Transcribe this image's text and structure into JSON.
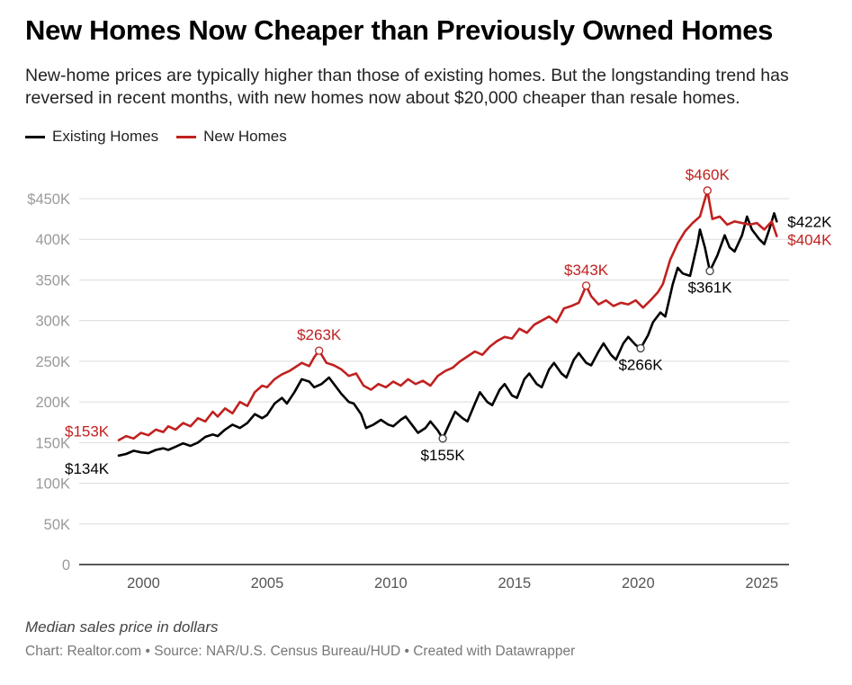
{
  "header": {
    "title": "New Homes Now Cheaper than Previously Owned Homes",
    "subtitle": "New-home prices are typically higher than those of existing homes. But the longstanding trend has reversed in recent months, with new homes now about $20,000 cheaper than resale homes."
  },
  "footer": {
    "note": "Median sales price in dollars",
    "credit": "Chart: Realtor.com • Source: NAR/U.S. Census Bureau/HUD • Created with Datawrapper"
  },
  "chart_data": {
    "type": "line",
    "ylim": [
      0,
      450000
    ],
    "xlim": [
      1997.4,
      2026.1
    ],
    "grid": true,
    "legend_position": "top-left",
    "y_ticks": [
      {
        "value": 0,
        "label": "0"
      },
      {
        "value": 50000,
        "label": "50K"
      },
      {
        "value": 100000,
        "label": "100K"
      },
      {
        "value": 150000,
        "label": "150K"
      },
      {
        "value": 200000,
        "label": "200K"
      },
      {
        "value": 250000,
        "label": "250K"
      },
      {
        "value": 300000,
        "label": "300K"
      },
      {
        "value": 350000,
        "label": "350K"
      },
      {
        "value": 400000,
        "label": "400K"
      },
      {
        "value": 450000,
        "label": "$450K"
      }
    ],
    "x_ticks": [
      {
        "value": 2000,
        "label": "2000"
      },
      {
        "value": 2005,
        "label": "2005"
      },
      {
        "value": 2010,
        "label": "2010"
      },
      {
        "value": 2015,
        "label": "2015"
      },
      {
        "value": 2020,
        "label": "2020"
      },
      {
        "value": 2025,
        "label": "2025"
      }
    ],
    "series": [
      {
        "name": "Existing Homes",
        "color": "#000000",
        "points": [
          [
            1999.0,
            134000
          ],
          [
            1999.3,
            136000
          ],
          [
            1999.6,
            140000
          ],
          [
            1999.9,
            138000
          ],
          [
            2000.2,
            137000
          ],
          [
            2000.5,
            141000
          ],
          [
            2000.8,
            143000
          ],
          [
            2001.0,
            141000
          ],
          [
            2001.3,
            145000
          ],
          [
            2001.6,
            149000
          ],
          [
            2001.9,
            146000
          ],
          [
            2002.2,
            150000
          ],
          [
            2002.5,
            157000
          ],
          [
            2002.8,
            160000
          ],
          [
            2003.0,
            158000
          ],
          [
            2003.3,
            166000
          ],
          [
            2003.6,
            172000
          ],
          [
            2003.9,
            168000
          ],
          [
            2004.2,
            174000
          ],
          [
            2004.5,
            185000
          ],
          [
            2004.8,
            180000
          ],
          [
            2005.0,
            184000
          ],
          [
            2005.3,
            198000
          ],
          [
            2005.6,
            205000
          ],
          [
            2005.8,
            198000
          ],
          [
            2006.1,
            212000
          ],
          [
            2006.4,
            228000
          ],
          [
            2006.7,
            225000
          ],
          [
            2006.9,
            218000
          ],
          [
            2007.2,
            222000
          ],
          [
            2007.5,
            230000
          ],
          [
            2007.8,
            218000
          ],
          [
            2008.0,
            210000
          ],
          [
            2008.3,
            200000
          ],
          [
            2008.5,
            198000
          ],
          [
            2008.8,
            185000
          ],
          [
            2009.0,
            168000
          ],
          [
            2009.3,
            172000
          ],
          [
            2009.6,
            178000
          ],
          [
            2009.9,
            172000
          ],
          [
            2010.1,
            170000
          ],
          [
            2010.4,
            178000
          ],
          [
            2010.6,
            182000
          ],
          [
            2010.9,
            170000
          ],
          [
            2011.1,
            162000
          ],
          [
            2011.4,
            168000
          ],
          [
            2011.6,
            176000
          ],
          [
            2011.9,
            165000
          ],
          [
            2012.1,
            155000
          ],
          [
            2012.4,
            175000
          ],
          [
            2012.6,
            188000
          ],
          [
            2012.9,
            180000
          ],
          [
            2013.1,
            176000
          ],
          [
            2013.4,
            198000
          ],
          [
            2013.6,
            212000
          ],
          [
            2013.9,
            200000
          ],
          [
            2014.1,
            196000
          ],
          [
            2014.4,
            215000
          ],
          [
            2014.6,
            222000
          ],
          [
            2014.9,
            208000
          ],
          [
            2015.1,
            205000
          ],
          [
            2015.4,
            228000
          ],
          [
            2015.6,
            235000
          ],
          [
            2015.9,
            222000
          ],
          [
            2016.1,
            218000
          ],
          [
            2016.4,
            240000
          ],
          [
            2016.6,
            248000
          ],
          [
            2016.9,
            235000
          ],
          [
            2017.1,
            230000
          ],
          [
            2017.4,
            252000
          ],
          [
            2017.6,
            260000
          ],
          [
            2017.9,
            248000
          ],
          [
            2018.1,
            245000
          ],
          [
            2018.4,
            262000
          ],
          [
            2018.6,
            272000
          ],
          [
            2018.9,
            258000
          ],
          [
            2019.1,
            252000
          ],
          [
            2019.4,
            272000
          ],
          [
            2019.6,
            280000
          ],
          [
            2019.9,
            270000
          ],
          [
            2020.1,
            266000
          ],
          [
            2020.4,
            282000
          ],
          [
            2020.6,
            298000
          ],
          [
            2020.9,
            310000
          ],
          [
            2021.1,
            305000
          ],
          [
            2021.4,
            345000
          ],
          [
            2021.6,
            365000
          ],
          [
            2021.8,
            358000
          ],
          [
            2022.1,
            355000
          ],
          [
            2022.4,
            395000
          ],
          [
            2022.5,
            412000
          ],
          [
            2022.7,
            390000
          ],
          [
            2022.9,
            361000
          ],
          [
            2023.2,
            380000
          ],
          [
            2023.5,
            405000
          ],
          [
            2023.7,
            390000
          ],
          [
            2023.9,
            385000
          ],
          [
            2024.2,
            405000
          ],
          [
            2024.4,
            428000
          ],
          [
            2024.6,
            412000
          ],
          [
            2024.9,
            400000
          ],
          [
            2025.1,
            394000
          ],
          [
            2025.3,
            412000
          ],
          [
            2025.5,
            432000
          ],
          [
            2025.6,
            422000
          ]
        ]
      },
      {
        "name": "New Homes",
        "color": "#c0211f",
        "points": [
          [
            1999.0,
            153000
          ],
          [
            1999.3,
            158000
          ],
          [
            1999.6,
            155000
          ],
          [
            1999.9,
            162000
          ],
          [
            2000.2,
            159000
          ],
          [
            2000.5,
            166000
          ],
          [
            2000.8,
            163000
          ],
          [
            2001.0,
            170000
          ],
          [
            2001.3,
            166000
          ],
          [
            2001.6,
            174000
          ],
          [
            2001.9,
            170000
          ],
          [
            2002.2,
            180000
          ],
          [
            2002.5,
            176000
          ],
          [
            2002.8,
            188000
          ],
          [
            2003.0,
            182000
          ],
          [
            2003.3,
            192000
          ],
          [
            2003.6,
            186000
          ],
          [
            2003.9,
            200000
          ],
          [
            2004.2,
            195000
          ],
          [
            2004.5,
            212000
          ],
          [
            2004.8,
            220000
          ],
          [
            2005.0,
            218000
          ],
          [
            2005.3,
            228000
          ],
          [
            2005.6,
            234000
          ],
          [
            2005.9,
            238000
          ],
          [
            2006.1,
            242000
          ],
          [
            2006.4,
            248000
          ],
          [
            2006.7,
            244000
          ],
          [
            2006.9,
            255000
          ],
          [
            2007.1,
            263000
          ],
          [
            2007.4,
            248000
          ],
          [
            2007.7,
            245000
          ],
          [
            2008.0,
            240000
          ],
          [
            2008.3,
            232000
          ],
          [
            2008.6,
            235000
          ],
          [
            2008.9,
            220000
          ],
          [
            2009.2,
            215000
          ],
          [
            2009.5,
            222000
          ],
          [
            2009.8,
            218000
          ],
          [
            2010.1,
            225000
          ],
          [
            2010.4,
            220000
          ],
          [
            2010.7,
            228000
          ],
          [
            2011.0,
            222000
          ],
          [
            2011.3,
            226000
          ],
          [
            2011.6,
            220000
          ],
          [
            2011.9,
            232000
          ],
          [
            2012.2,
            238000
          ],
          [
            2012.5,
            242000
          ],
          [
            2012.8,
            250000
          ],
          [
            2013.1,
            256000
          ],
          [
            2013.4,
            262000
          ],
          [
            2013.7,
            258000
          ],
          [
            2014.0,
            268000
          ],
          [
            2014.3,
            275000
          ],
          [
            2014.6,
            280000
          ],
          [
            2014.9,
            278000
          ],
          [
            2015.2,
            290000
          ],
          [
            2015.5,
            285000
          ],
          [
            2015.8,
            295000
          ],
          [
            2016.1,
            300000
          ],
          [
            2016.4,
            305000
          ],
          [
            2016.7,
            298000
          ],
          [
            2017.0,
            315000
          ],
          [
            2017.3,
            318000
          ],
          [
            2017.6,
            322000
          ],
          [
            2017.9,
            343000
          ],
          [
            2018.1,
            330000
          ],
          [
            2018.4,
            320000
          ],
          [
            2018.7,
            325000
          ],
          [
            2019.0,
            318000
          ],
          [
            2019.3,
            322000
          ],
          [
            2019.6,
            320000
          ],
          [
            2019.9,
            325000
          ],
          [
            2020.2,
            316000
          ],
          [
            2020.5,
            325000
          ],
          [
            2020.8,
            335000
          ],
          [
            2021.0,
            345000
          ],
          [
            2021.3,
            375000
          ],
          [
            2021.6,
            395000
          ],
          [
            2021.9,
            410000
          ],
          [
            2022.2,
            420000
          ],
          [
            2022.5,
            428000
          ],
          [
            2022.8,
            460000
          ],
          [
            2023.0,
            425000
          ],
          [
            2023.3,
            428000
          ],
          [
            2023.6,
            418000
          ],
          [
            2023.9,
            422000
          ],
          [
            2024.2,
            420000
          ],
          [
            2024.5,
            418000
          ],
          [
            2024.8,
            420000
          ],
          [
            2025.1,
            412000
          ],
          [
            2025.4,
            422000
          ],
          [
            2025.6,
            404000
          ]
        ]
      }
    ],
    "annotations": [
      {
        "series": "New Homes",
        "x": 1999.0,
        "y": 153000,
        "label": "$153K",
        "color": "#c0211f",
        "marker": false
      },
      {
        "series": "Existing Homes",
        "x": 1999.0,
        "y": 134000,
        "label": "$134K",
        "color": "#000000",
        "marker": false
      },
      {
        "series": "New Homes",
        "x": 2007.1,
        "y": 263000,
        "label": "$263K",
        "color": "#c0211f",
        "marker": true
      },
      {
        "series": "Existing Homes",
        "x": 2012.1,
        "y": 155000,
        "label": "$155K",
        "color": "#000000",
        "marker": true
      },
      {
        "series": "New Homes",
        "x": 2017.9,
        "y": 343000,
        "label": "$343K",
        "color": "#c0211f",
        "marker": true
      },
      {
        "series": "Existing Homes",
        "x": 2020.1,
        "y": 266000,
        "label": "$266K",
        "color": "#000000",
        "marker": true
      },
      {
        "series": "New Homes",
        "x": 2022.8,
        "y": 460000,
        "label": "$460K",
        "color": "#c0211f",
        "marker": true
      },
      {
        "series": "Existing Homes",
        "x": 2022.9,
        "y": 361000,
        "label": "$361K",
        "color": "#000000",
        "marker": true
      },
      {
        "series": "Existing Homes",
        "x": 2025.6,
        "y": 422000,
        "label": "$422K",
        "color": "#000000",
        "marker": false
      },
      {
        "series": "New Homes",
        "x": 2025.6,
        "y": 404000,
        "label": "$404K",
        "color": "#c0211f",
        "marker": false
      }
    ]
  }
}
